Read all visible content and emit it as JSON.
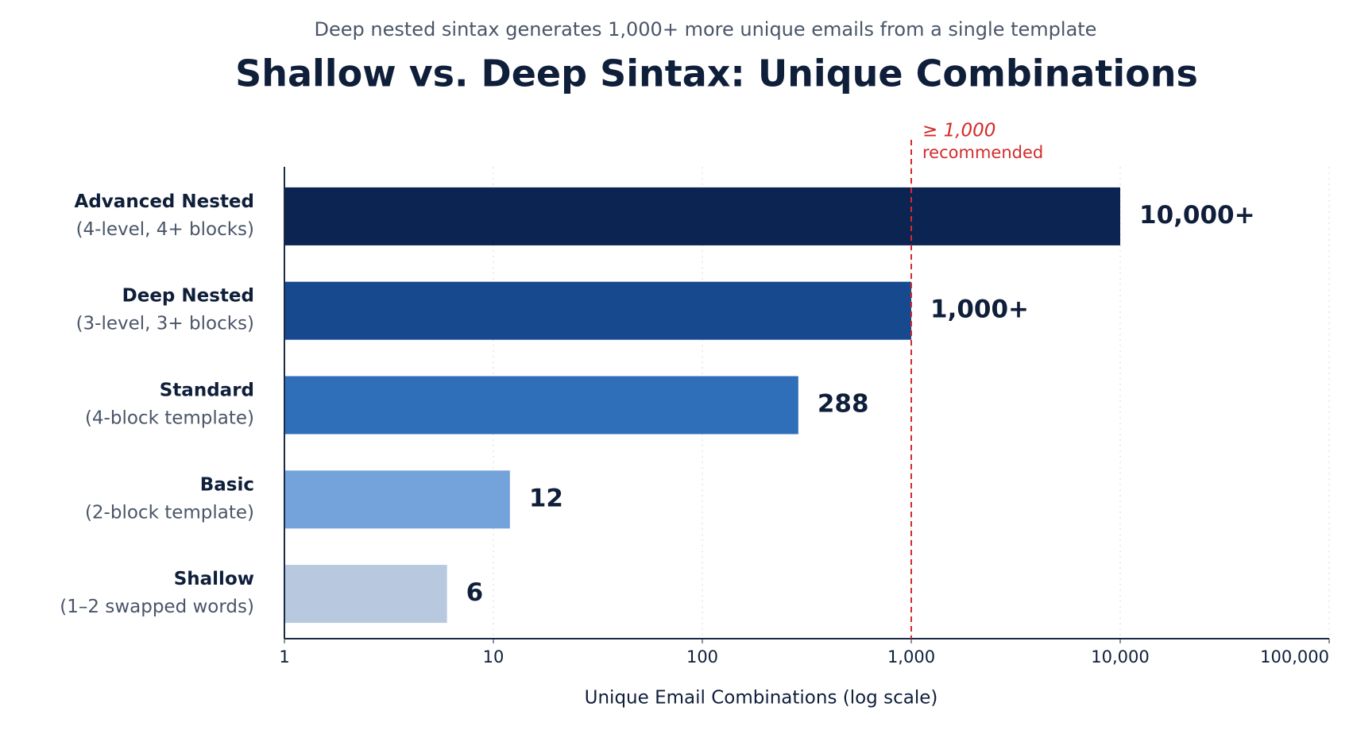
{
  "chart_data": {
    "type": "bar",
    "orientation": "horizontal",
    "subtitle": "Deep nested sintax generates 1,000+ more unique emails from a single template",
    "title": "Shallow vs. Deep Sintax: Unique Combinations",
    "categories": [
      "Advanced Nested",
      "Deep Nested",
      "Standard",
      "Basic",
      "Shallow"
    ],
    "category_details": [
      "(4-level, 4+ blocks)",
      "(3-level, 3+ blocks)",
      "(4-block template)",
      "(2-block template)",
      "(1–2 swapped words)"
    ],
    "values": [
      10000,
      1000,
      288,
      12,
      6
    ],
    "value_labels": [
      "10,000+",
      "1,000+",
      "288",
      "12",
      "6"
    ],
    "colors": [
      "#0b2452",
      "#17498f",
      "#2f6fba",
      "#74a3dc",
      "#b7c8df"
    ],
    "xlabel": "Unique Email Combinations (log scale)",
    "xscale": "log",
    "xlim": [
      1,
      100000
    ],
    "xticks": [
      1,
      10,
      100,
      {
        "value": 1000,
        "label": "1,000"
      },
      {
        "value": 10000,
        "label": "10,000"
      },
      {
        "value": 100000,
        "label": "100,000"
      }
    ],
    "grid": true,
    "reference_line": {
      "value": 1000,
      "label": "≥ 1,000",
      "note": "recommended",
      "color": "#d42a2a"
    }
  }
}
